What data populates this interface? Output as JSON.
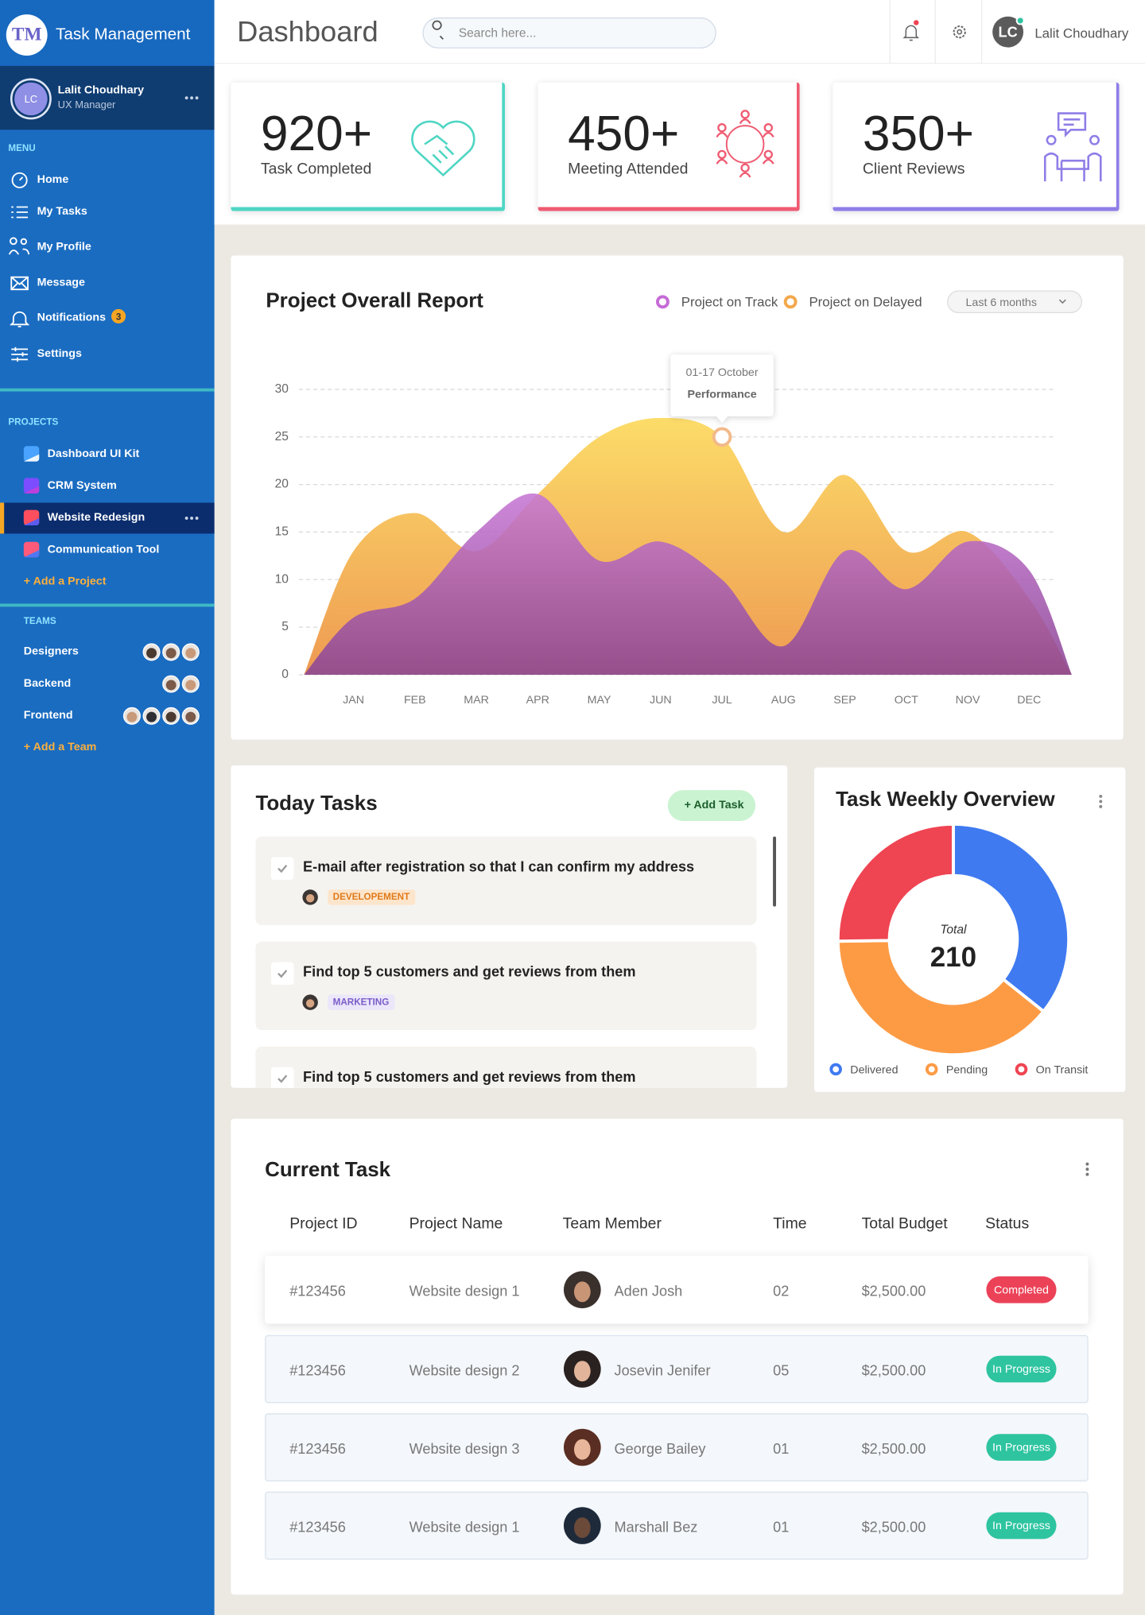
{
  "sidebar": {
    "logo": "TM",
    "brand": "Task Management",
    "user": {
      "initials": "LC",
      "name": "Lalit Choudhary",
      "role": "UX Manager"
    },
    "menu_label": "MENU",
    "menu": [
      {
        "label": "Home"
      },
      {
        "label": "My Tasks"
      },
      {
        "label": "My Profile"
      },
      {
        "label": "Message"
      },
      {
        "label": "Notifications",
        "badge": "3"
      },
      {
        "label": "Settings"
      }
    ],
    "projects_label": "PROJECTS",
    "projects": [
      {
        "label": "Dashboard UI Kit"
      },
      {
        "label": "CRM System"
      },
      {
        "label": "Website Redesign",
        "active": true
      },
      {
        "label": "Communication Tool"
      }
    ],
    "add_project": "+ Add a Project",
    "teams_label": "TEAMS",
    "teams": [
      {
        "name": "Designers",
        "members": 3
      },
      {
        "name": "Backend",
        "members": 2
      },
      {
        "name": "Frontend",
        "members": 4
      }
    ],
    "add_team": "+ Add a Team"
  },
  "header": {
    "title": "Dashboard",
    "search_placeholder": "Search here...",
    "user_initials": "LC",
    "user_name": "Lalit Choudhary"
  },
  "stats": [
    {
      "value": "920+",
      "label": "Task Completed",
      "color": "#4fd6c4"
    },
    {
      "value": "450+",
      "label": "Meeting Attended",
      "color": "#ef5b72"
    },
    {
      "value": "350+",
      "label": "Client Reviews",
      "color": "#8f7ee8"
    }
  ],
  "chart_data": [
    {
      "type": "area",
      "title": "Project Overall Report",
      "range_selector": "Last 6 months",
      "categories": [
        "JAN",
        "FEB",
        "MAR",
        "APR",
        "MAY",
        "JUN",
        "JUL",
        "AUG",
        "SEP",
        "OCT",
        "NOV",
        "DEC"
      ],
      "series": [
        {
          "name": "Project on Track",
          "color": "#c56bd6",
          "gradient": [
            "#c777d4",
            "#8a4593"
          ],
          "values": [
            6,
            8,
            15,
            19,
            12,
            14,
            10,
            3,
            13,
            9,
            14,
            11
          ]
        },
        {
          "name": "Project on Delayed",
          "color": "#f3a84c",
          "gradient": [
            "#fcdc69",
            "#ee9a52"
          ],
          "values": [
            13,
            17,
            13,
            19,
            25,
            27,
            25,
            15,
            21,
            13,
            15,
            8
          ]
        }
      ],
      "ylim": [
        0,
        30
      ],
      "yticks": [
        0,
        5,
        10,
        15,
        20,
        25,
        30
      ],
      "grid": true,
      "tooltip": {
        "title": "01-17 October",
        "label": "Performance"
      }
    },
    {
      "type": "donut",
      "title": "Task Weekly Overview",
      "center_label": "Total",
      "center_value": "210",
      "categories": [
        "Delivered",
        "Pending",
        "On Transit"
      ],
      "values": [
        75,
        82,
        53
      ],
      "colors": [
        "#3f7af1",
        "#fd9b45",
        "#ef4452"
      ]
    }
  ],
  "today_tasks": {
    "title": "Today Tasks",
    "add_button": "+ Add Task",
    "tasks": [
      {
        "text": "E-mail after registration so that I can confirm my address",
        "tag": "DEVELOPEMENT",
        "tag_color": "#e07a1a",
        "tag_bg": "#fde5cc"
      },
      {
        "text": "Find top 5 customers and get reviews from them",
        "tag": "MARKETING",
        "tag_color": "#7a5cc8",
        "tag_bg": "#ebe6fa"
      },
      {
        "text": "Find top 5 customers and get reviews from them"
      }
    ]
  },
  "current_task": {
    "title": "Current Task",
    "columns": [
      "Project ID",
      "Project Name",
      "Team Member",
      "Time",
      "Total Budget",
      "Status"
    ],
    "rows": [
      {
        "id": "#123456",
        "project": "Website design 1",
        "member": "Aden Josh",
        "time": "02",
        "budget": "$2,500.00",
        "status": "Completed",
        "status_color": "#ec4258"
      },
      {
        "id": "#123456",
        "project": "Website design 2",
        "member": "Josevin Jenifer",
        "time": "05",
        "budget": "$2,500.00",
        "status": "In Progress",
        "status_color": "#2ec4a0"
      },
      {
        "id": "#123456",
        "project": "Website design 3",
        "member": "George Bailey",
        "time": "01",
        "budget": "$2,500.00",
        "status": "In Progress",
        "status_color": "#2ec4a0"
      },
      {
        "id": "#123456",
        "project": "Website design 1",
        "member": "Marshall Bez",
        "time": "01",
        "budget": "$2,500.00",
        "status": "In Progress",
        "status_color": "#2ec4a0"
      }
    ]
  }
}
